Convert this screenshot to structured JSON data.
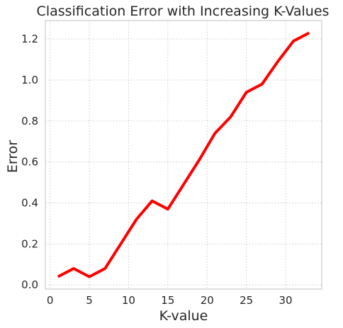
{
  "chart_data": {
    "type": "line",
    "title": "Classification Error with Increasing K-Values",
    "xlabel": "K-value",
    "ylabel": "Error",
    "xlim": [
      -0.6,
      34.6
    ],
    "ylim": [
      -0.02,
      1.29
    ],
    "xticks": [
      0,
      5,
      10,
      15,
      20,
      25,
      30
    ],
    "yticks": [
      0.0,
      0.2,
      0.4,
      0.6,
      0.8,
      1.0,
      1.2
    ],
    "xtick_labels": [
      "0",
      "5",
      "10",
      "15",
      "20",
      "25",
      "30"
    ],
    "ytick_labels": [
      "0.0",
      "0.2",
      "0.4",
      "0.6",
      "0.8",
      "1.0",
      "1.2"
    ],
    "grid": true,
    "series": [
      {
        "color": "#ff0000",
        "x": [
          1,
          3,
          5,
          7,
          9,
          11,
          13,
          15,
          17,
          19,
          21,
          23,
          25,
          27,
          29,
          31,
          33
        ],
        "y": [
          0.04,
          0.08,
          0.04,
          0.08,
          0.2,
          0.32,
          0.41,
          0.37,
          0.49,
          0.61,
          0.74,
          0.82,
          0.94,
          0.98,
          1.09,
          1.19,
          1.23
        ]
      }
    ]
  }
}
